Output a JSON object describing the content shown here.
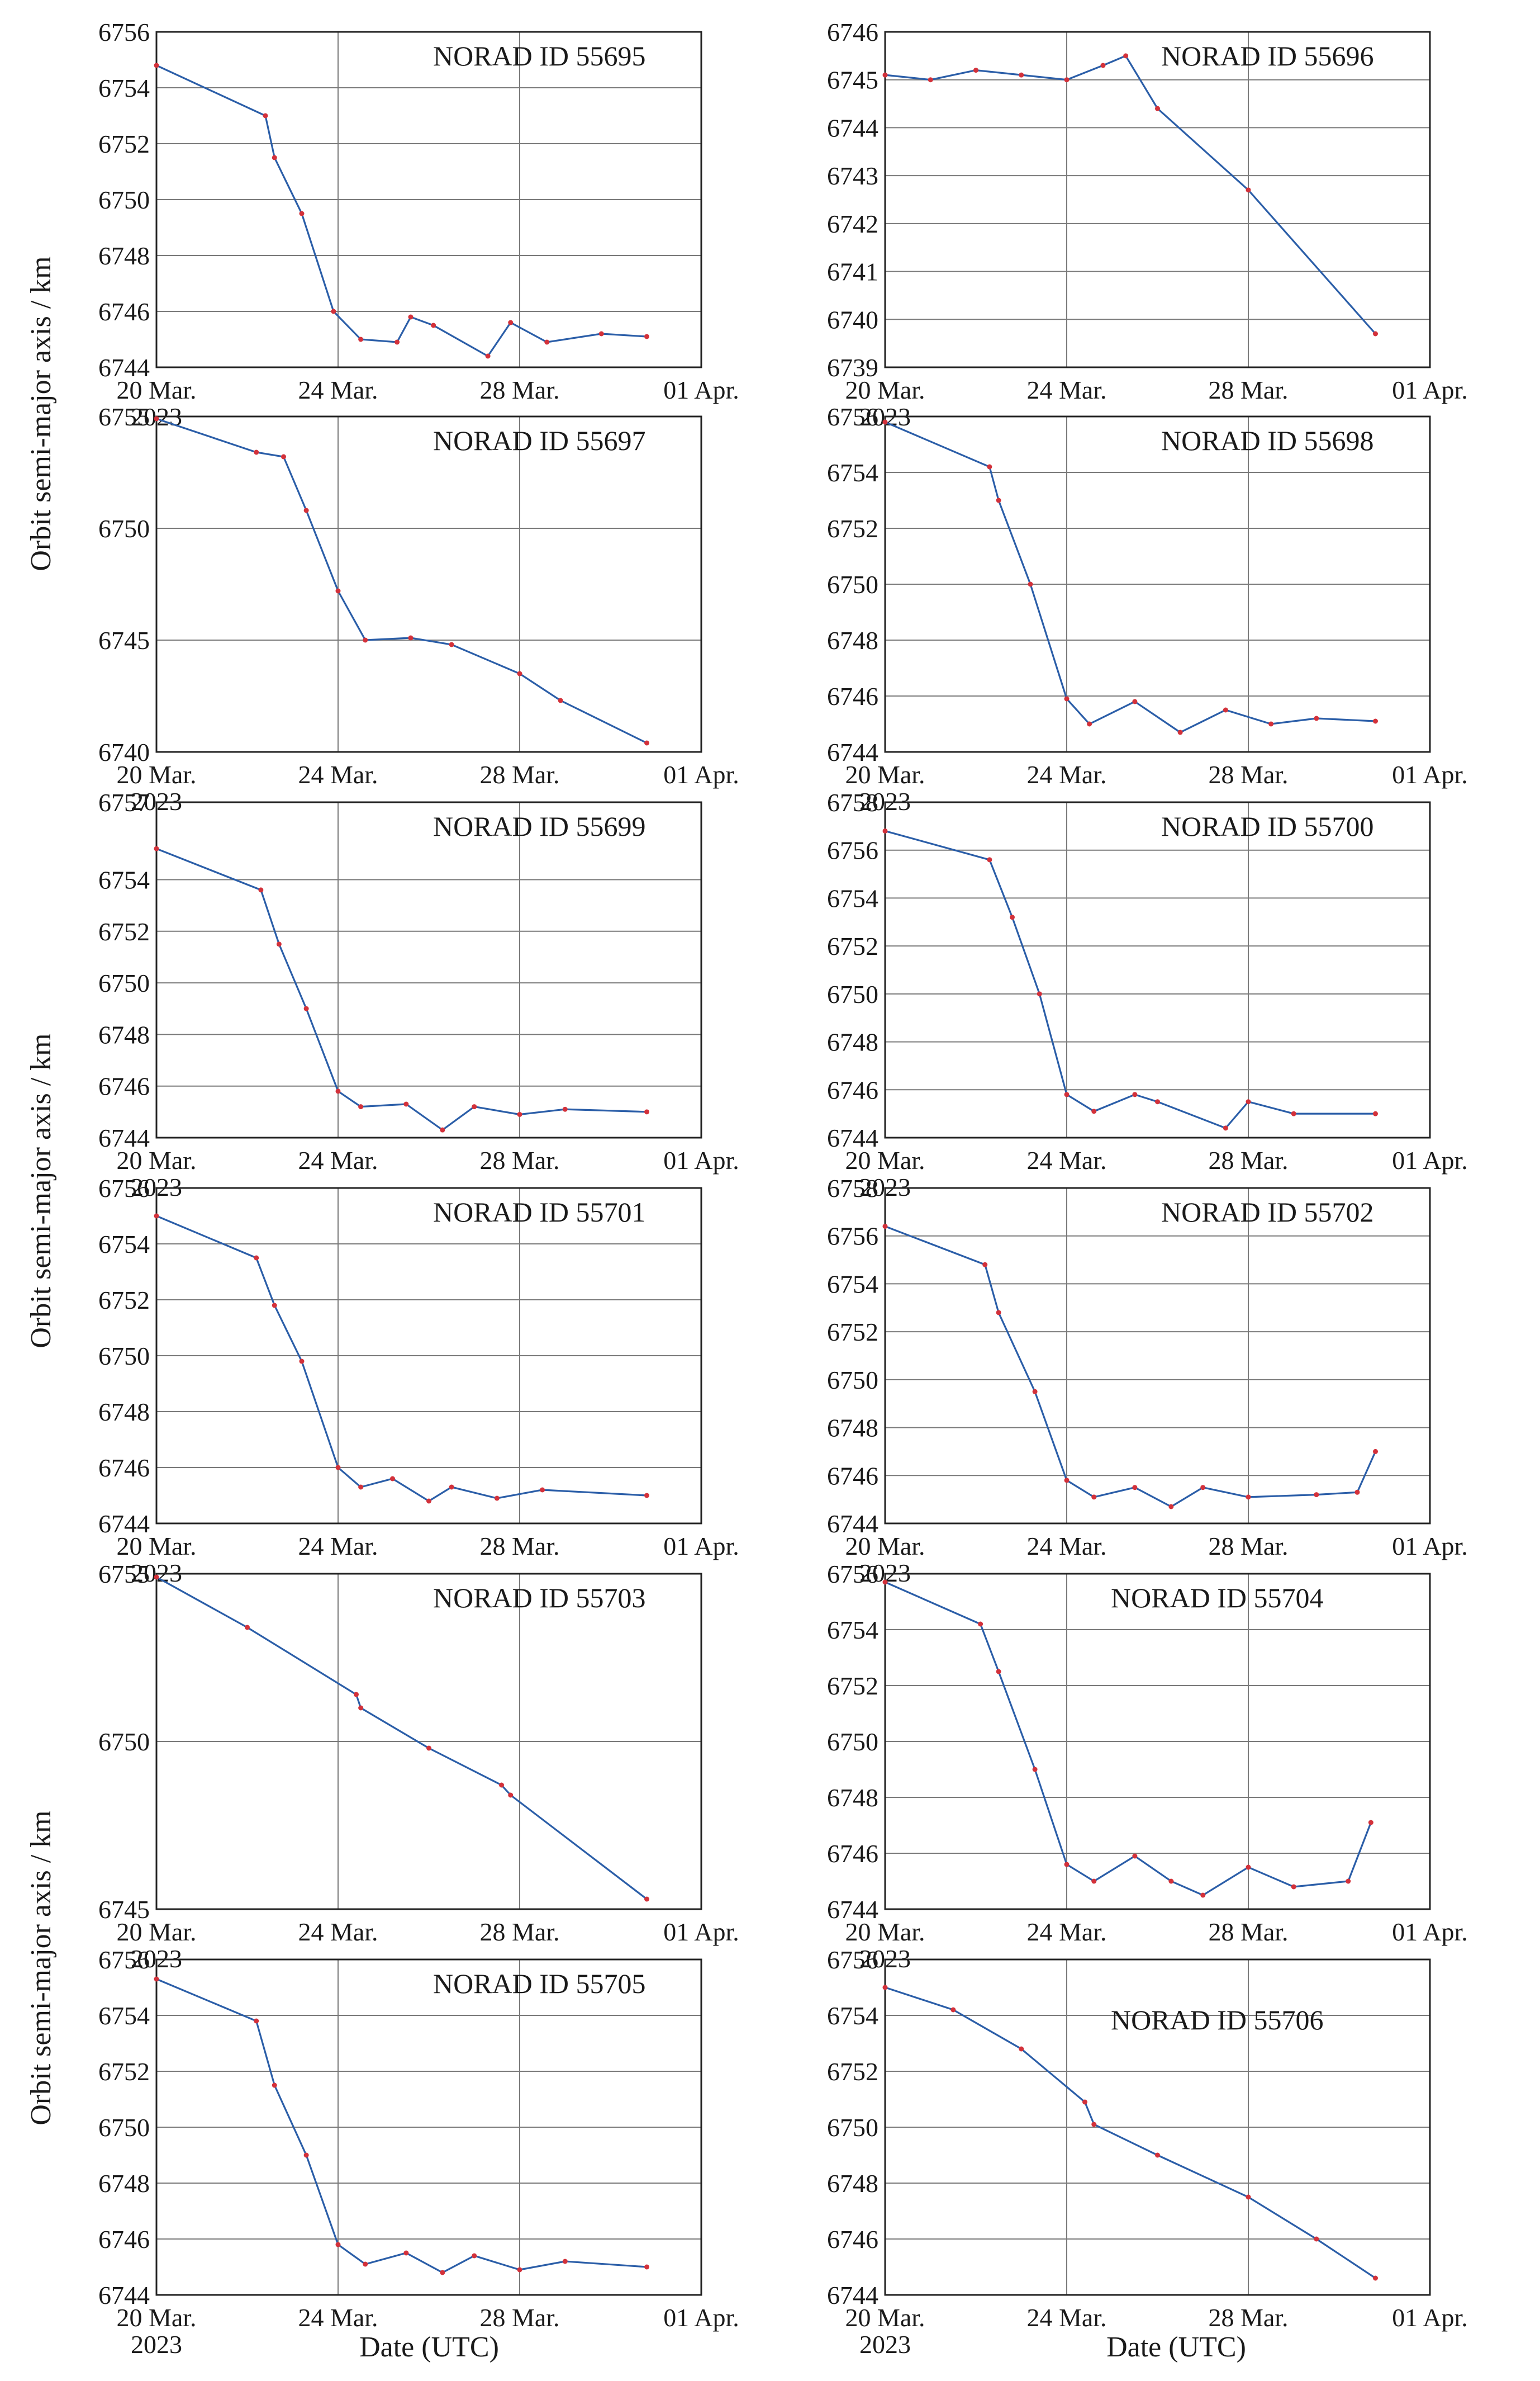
{
  "figure": {
    "ylabel": "Orbit semi-major axis / km",
    "xlabel": "Date (UTC)",
    "x_ticks": [
      "20 Mar.",
      "24 Mar.",
      "28 Mar.",
      "01 Apr."
    ],
    "x_year": "2023",
    "colors": {
      "line": "#2b5ea8",
      "marker": "#d3313a"
    }
  },
  "chart_data": [
    {
      "type": "line",
      "title": "NORAD ID 55695",
      "ylim": [
        6744,
        6756
      ],
      "yticks": [
        6744,
        6746,
        6748,
        6750,
        6752,
        6754,
        6756
      ],
      "xlim": [
        "2023-03-20",
        "2023-04-01"
      ],
      "x": [
        "2023-03-20",
        "2023-03-22.4",
        "2023-03-22.6",
        "2023-03-23.2",
        "2023-03-23.9",
        "2023-03-24.5",
        "2023-03-25.3",
        "2023-03-25.6",
        "2023-03-26.1",
        "2023-03-27.3",
        "2023-03-27.8",
        "2023-03-28.6",
        "2023-03-29.8",
        "2023-03-30.8"
      ],
      "values": [
        6754.8,
        6753.0,
        6751.5,
        6749.5,
        6746.0,
        6745.0,
        6744.9,
        6745.8,
        6745.5,
        6744.4,
        6745.6,
        6744.9,
        6745.2,
        6745.1
      ]
    },
    {
      "type": "line",
      "title": "NORAD ID 55696",
      "ylim": [
        6739,
        6746
      ],
      "yticks": [
        6739,
        6740,
        6741,
        6742,
        6743,
        6744,
        6745,
        6746
      ],
      "xlim": [
        "2023-03-20",
        "2023-04-01"
      ],
      "x": [
        "2023-03-20",
        "2023-03-21",
        "2023-03-22",
        "2023-03-23",
        "2023-03-24",
        "2023-03-24.8",
        "2023-03-25.3",
        "2023-03-26",
        "2023-03-28",
        "2023-03-30.8"
      ],
      "values": [
        6745.1,
        6745.0,
        6745.2,
        6745.1,
        6745.0,
        6745.3,
        6745.5,
        6744.4,
        6742.7,
        6739.7
      ]
    },
    {
      "type": "line",
      "title": "NORAD ID 55697",
      "ylim": [
        6740,
        6755
      ],
      "yticks": [
        6740,
        6745,
        6750,
        6755
      ],
      "xlim": [
        "2023-03-20",
        "2023-04-01"
      ],
      "x": [
        "2023-03-20",
        "2023-03-22.2",
        "2023-03-22.8",
        "2023-03-23.3",
        "2023-03-24.0",
        "2023-03-24.6",
        "2023-03-25.6",
        "2023-03-26.5",
        "2023-03-28",
        "2023-03-28.9",
        "2023-03-30.8"
      ],
      "values": [
        6754.9,
        6753.4,
        6753.2,
        6750.8,
        6747.2,
        6745.0,
        6745.1,
        6744.8,
        6743.5,
        6742.3,
        6740.4
      ]
    },
    {
      "type": "line",
      "title": "NORAD ID 55698",
      "ylim": [
        6744,
        6756
      ],
      "yticks": [
        6744,
        6746,
        6748,
        6750,
        6752,
        6754,
        6756
      ],
      "xlim": [
        "2023-03-20",
        "2023-04-01"
      ],
      "x": [
        "2023-03-20",
        "2023-03-22.3",
        "2023-03-22.5",
        "2023-03-23.2",
        "2023-03-24.0",
        "2023-03-24.5",
        "2023-03-25.5",
        "2023-03-26.5",
        "2023-03-27.5",
        "2023-03-28.5",
        "2023-03-29.5",
        "2023-03-30.8"
      ],
      "values": [
        6755.8,
        6754.2,
        6753.0,
        6750.0,
        6745.9,
        6745.0,
        6745.8,
        6744.7,
        6745.5,
        6745.0,
        6745.2,
        6745.1
      ]
    },
    {
      "type": "line",
      "title": "NORAD ID 55699",
      "ylim": [
        6744,
        6757
      ],
      "yticks": [
        6744,
        6746,
        6748,
        6750,
        6752,
        6754,
        6757
      ],
      "xlim": [
        "2023-03-20",
        "2023-04-01"
      ],
      "x": [
        "2023-03-20",
        "2023-03-22.3",
        "2023-03-22.7",
        "2023-03-23.3",
        "2023-03-24.0",
        "2023-03-24.5",
        "2023-03-25.5",
        "2023-03-26.3",
        "2023-03-27.0",
        "2023-03-28.0",
        "2023-03-29.0",
        "2023-03-30.8"
      ],
      "values": [
        6755.2,
        6753.6,
        6751.5,
        6749.0,
        6745.8,
        6745.2,
        6745.3,
        6744.3,
        6745.2,
        6744.9,
        6745.1,
        6745.0
      ]
    },
    {
      "type": "line",
      "title": "NORAD ID 55700",
      "ylim": [
        6744,
        6758
      ],
      "yticks": [
        6744,
        6746,
        6748,
        6750,
        6752,
        6754,
        6756,
        6758
      ],
      "xlim": [
        "2023-03-20",
        "2023-04-01"
      ],
      "x": [
        "2023-03-20",
        "2023-03-22.3",
        "2023-03-22.8",
        "2023-03-23.4",
        "2023-03-24.0",
        "2023-03-24.6",
        "2023-03-25.5",
        "2023-03-26.0",
        "2023-03-27.5",
        "2023-03-28.0",
        "2023-03-29.0",
        "2023-03-30.8"
      ],
      "values": [
        6756.8,
        6755.6,
        6753.2,
        6750.0,
        6745.8,
        6745.1,
        6745.8,
        6745.5,
        6744.4,
        6745.5,
        6745.0,
        6745.0
      ]
    },
    {
      "type": "line",
      "title": "NORAD ID 55701",
      "ylim": [
        6744,
        6756
      ],
      "yticks": [
        6744,
        6746,
        6748,
        6750,
        6752,
        6754,
        6756
      ],
      "xlim": [
        "2023-03-20",
        "2023-04-01"
      ],
      "x": [
        "2023-03-20",
        "2023-03-22.2",
        "2023-03-22.6",
        "2023-03-23.2",
        "2023-03-24.0",
        "2023-03-24.5",
        "2023-03-25.2",
        "2023-03-26.0",
        "2023-03-26.5",
        "2023-03-27.5",
        "2023-03-28.5",
        "2023-03-30.8"
      ],
      "values": [
        6755.0,
        6753.5,
        6751.8,
        6749.8,
        6746.0,
        6745.3,
        6745.6,
        6744.8,
        6745.3,
        6744.9,
        6745.2,
        6745.0
      ]
    },
    {
      "type": "line",
      "title": "NORAD ID 55702",
      "ylim": [
        6744,
        6758
      ],
      "yticks": [
        6744,
        6746,
        6748,
        6750,
        6752,
        6754,
        6756,
        6758
      ],
      "xlim": [
        "2023-03-20",
        "2023-04-01"
      ],
      "x": [
        "2023-03-20",
        "2023-03-22.2",
        "2023-03-22.5",
        "2023-03-23.3",
        "2023-03-24.0",
        "2023-03-24.6",
        "2023-03-25.5",
        "2023-03-26.3",
        "2023-03-27.0",
        "2023-03-28.0",
        "2023-03-29.5",
        "2023-03-30.4",
        "2023-03-30.8"
      ],
      "values": [
        6756.4,
        6754.8,
        6752.8,
        6749.5,
        6745.8,
        6745.1,
        6745.5,
        6744.7,
        6745.5,
        6745.1,
        6745.2,
        6745.3,
        6747.0
      ]
    },
    {
      "type": "line",
      "title": "NORAD ID 55703",
      "ylim": [
        6745,
        6755
      ],
      "yticks": [
        6745,
        6750,
        6755
      ],
      "xlim": [
        "2023-03-20",
        "2023-04-01"
      ],
      "x": [
        "2023-03-20",
        "2023-03-22",
        "2023-03-24.4",
        "2023-03-24.5",
        "2023-03-26",
        "2023-03-27.6",
        "2023-03-27.8",
        "2023-03-30.8"
      ],
      "values": [
        6754.9,
        6753.4,
        6751.4,
        6751.0,
        6749.8,
        6748.7,
        6748.4,
        6745.3
      ]
    },
    {
      "type": "line",
      "title": "NORAD ID 55704",
      "ylim": [
        6744,
        6756
      ],
      "yticks": [
        6744,
        6746,
        6748,
        6750,
        6752,
        6754,
        6756
      ],
      "xlim": [
        "2023-03-20",
        "2023-04-01"
      ],
      "x": [
        "2023-03-20",
        "2023-03-22.1",
        "2023-03-22.5",
        "2023-03-23.3",
        "2023-03-24.0",
        "2023-03-24.6",
        "2023-03-25.5",
        "2023-03-26.3",
        "2023-03-27.0",
        "2023-03-28.0",
        "2023-03-29.0",
        "2023-03-30.2",
        "2023-03-30.7"
      ],
      "values": [
        6755.7,
        6754.2,
        6752.5,
        6749.0,
        6745.6,
        6745.0,
        6745.9,
        6745.0,
        6744.5,
        6745.5,
        6744.8,
        6745.0,
        6747.1
      ]
    },
    {
      "type": "line",
      "title": "NORAD ID 55705",
      "ylim": [
        6744,
        6756
      ],
      "yticks": [
        6744,
        6746,
        6748,
        6750,
        6752,
        6754,
        6756
      ],
      "xlim": [
        "2023-03-20",
        "2023-04-01"
      ],
      "x": [
        "2023-03-20",
        "2023-03-22.2",
        "2023-03-22.6",
        "2023-03-23.3",
        "2023-03-24.0",
        "2023-03-24.6",
        "2023-03-25.5",
        "2023-03-26.3",
        "2023-03-27.0",
        "2023-03-28.0",
        "2023-03-29.0",
        "2023-03-30.8"
      ],
      "values": [
        6755.3,
        6753.8,
        6751.5,
        6749.0,
        6745.8,
        6745.1,
        6745.5,
        6744.8,
        6745.4,
        6744.9,
        6745.2,
        6745.0
      ]
    },
    {
      "type": "line",
      "title": "NORAD ID 55706",
      "ylim": [
        6744,
        6756
      ],
      "yticks": [
        6744,
        6746,
        6748,
        6750,
        6752,
        6754,
        6756
      ],
      "xlim": [
        "2023-03-20",
        "2023-04-01"
      ],
      "x": [
        "2023-03-20",
        "2023-03-21.5",
        "2023-03-23.0",
        "2023-03-24.4",
        "2023-03-24.6",
        "2023-03-26",
        "2023-03-28",
        "2023-03-29.5",
        "2023-03-30.8"
      ],
      "values": [
        6755.0,
        6754.2,
        6752.8,
        6750.9,
        6750.1,
        6749.0,
        6747.5,
        6746.0,
        6744.6
      ]
    }
  ]
}
